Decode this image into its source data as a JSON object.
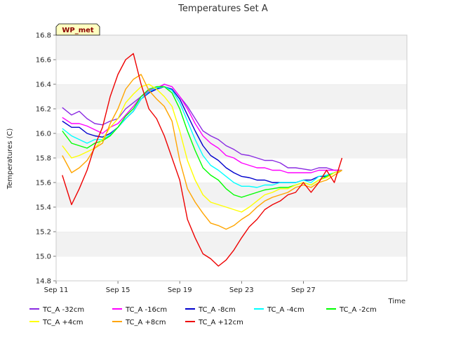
{
  "chart_data": {
    "type": "line",
    "title": "Temperatures Set A",
    "xlabel": "Time",
    "ylabel": "Temperatures (C)",
    "badge": "WP_met",
    "x_range": [
      11.0,
      33.7
    ],
    "ylim": [
      14.8,
      16.8
    ],
    "y_ticks": [
      "14.8",
      "15.0",
      "15.2",
      "15.4",
      "15.6",
      "15.8",
      "16.0",
      "16.2",
      "16.4",
      "16.6",
      "16.8"
    ],
    "x_ticks": [
      {
        "value": 11,
        "label": "Sep 11"
      },
      {
        "value": 15,
        "label": "Sep 15"
      },
      {
        "value": 19,
        "label": "Sep 19"
      },
      {
        "value": 23,
        "label": "Sep 23"
      },
      {
        "value": 27,
        "label": "Sep 27"
      }
    ],
    "grid": "bands",
    "legend_position": "bottom",
    "x": [
      11.4,
      12.0,
      12.5,
      13.0,
      13.5,
      14.0,
      14.5,
      15.0,
      15.5,
      16.0,
      16.5,
      17.0,
      17.5,
      18.0,
      18.5,
      19.0,
      19.5,
      20.0,
      20.5,
      21.0,
      21.5,
      22.0,
      22.5,
      23.0,
      23.5,
      24.0,
      24.5,
      25.0,
      25.5,
      26.0,
      26.5,
      27.0,
      27.5,
      28.0,
      28.5,
      29.0,
      29.5
    ],
    "series": [
      {
        "name": "TC_A -32cm",
        "color": "#8a2be2",
        "values": [
          16.21,
          16.15,
          16.18,
          16.12,
          16.08,
          16.07,
          16.1,
          16.12,
          16.2,
          16.25,
          16.3,
          16.34,
          16.36,
          16.4,
          16.38,
          16.3,
          16.22,
          16.12,
          16.02,
          15.98,
          15.95,
          15.9,
          15.87,
          15.83,
          15.82,
          15.8,
          15.78,
          15.78,
          15.76,
          15.72,
          15.72,
          15.71,
          15.7,
          15.72,
          15.72,
          15.7,
          15.7
        ]
      },
      {
        "name": "TC_A -16cm",
        "color": "#ff00ff",
        "values": [
          16.13,
          16.08,
          16.08,
          16.06,
          16.03,
          16.0,
          16.05,
          16.08,
          16.15,
          16.22,
          16.3,
          16.35,
          16.37,
          16.4,
          16.38,
          16.3,
          16.2,
          16.08,
          15.98,
          15.92,
          15.88,
          15.82,
          15.8,
          15.76,
          15.74,
          15.72,
          15.72,
          15.7,
          15.7,
          15.68,
          15.68,
          15.68,
          15.68,
          15.7,
          15.7,
          15.7,
          15.7
        ]
      },
      {
        "name": "TC_A -8cm",
        "color": "#0000cd",
        "values": [
          16.1,
          16.05,
          16.05,
          16.0,
          15.98,
          15.97,
          16.0,
          16.05,
          16.12,
          16.18,
          16.28,
          16.33,
          16.36,
          16.38,
          16.36,
          16.28,
          16.15,
          16.02,
          15.9,
          15.82,
          15.78,
          15.72,
          15.68,
          15.65,
          15.64,
          15.62,
          15.62,
          15.6,
          15.6,
          15.6,
          15.6,
          15.62,
          15.62,
          15.65,
          15.65,
          15.68,
          15.7
        ]
      },
      {
        "name": "TC_A -4cm",
        "color": "#00ffff",
        "values": [
          16.04,
          15.98,
          15.95,
          15.92,
          15.95,
          15.95,
          15.99,
          16.05,
          16.12,
          16.18,
          16.28,
          16.34,
          16.37,
          16.38,
          16.35,
          16.25,
          16.1,
          15.95,
          15.82,
          15.74,
          15.7,
          15.65,
          15.6,
          15.57,
          15.57,
          15.56,
          15.58,
          15.58,
          15.6,
          15.6,
          15.6,
          15.62,
          15.6,
          15.65,
          15.66,
          15.68,
          15.7
        ]
      },
      {
        "name": "TC_A -2cm",
        "color": "#00ff00",
        "values": [
          16.02,
          15.92,
          15.9,
          15.88,
          15.92,
          15.94,
          15.98,
          16.05,
          16.14,
          16.2,
          16.3,
          16.36,
          16.38,
          16.38,
          16.33,
          16.2,
          16.02,
          15.86,
          15.72,
          15.66,
          15.62,
          15.55,
          15.5,
          15.48,
          15.5,
          15.52,
          15.54,
          15.55,
          15.56,
          15.56,
          15.58,
          15.6,
          15.58,
          15.62,
          15.65,
          15.68,
          15.7
        ]
      },
      {
        "name": "TC_A +4cm",
        "color": "#ffff00",
        "values": [
          15.9,
          15.8,
          15.82,
          15.85,
          15.88,
          15.95,
          16.05,
          16.12,
          16.25,
          16.32,
          16.38,
          16.4,
          16.36,
          16.3,
          16.22,
          16.02,
          15.78,
          15.62,
          15.5,
          15.44,
          15.42,
          15.4,
          15.38,
          15.36,
          15.4,
          15.45,
          15.5,
          15.52,
          15.55,
          15.55,
          15.58,
          15.6,
          15.58,
          15.62,
          15.64,
          15.68,
          15.7
        ]
      },
      {
        "name": "TC_A +8cm",
        "color": "#ffa500",
        "values": [
          15.82,
          15.68,
          15.72,
          15.78,
          15.88,
          15.92,
          16.08,
          16.2,
          16.36,
          16.44,
          16.48,
          16.35,
          16.28,
          16.22,
          16.1,
          15.78,
          15.55,
          15.44,
          15.35,
          15.27,
          15.25,
          15.22,
          15.25,
          15.3,
          15.34,
          15.4,
          15.45,
          15.48,
          15.5,
          15.52,
          15.56,
          15.58,
          15.56,
          15.6,
          15.62,
          15.66,
          15.7
        ]
      },
      {
        "name": "TC_A +12cm",
        "color": "#ee0000",
        "values": [
          15.66,
          15.42,
          15.55,
          15.7,
          15.9,
          16.05,
          16.3,
          16.48,
          16.6,
          16.65,
          16.4,
          16.2,
          16.12,
          15.98,
          15.8,
          15.62,
          15.3,
          15.15,
          15.02,
          14.98,
          14.92,
          14.97,
          15.05,
          15.15,
          15.24,
          15.3,
          15.38,
          15.42,
          15.45,
          15.5,
          15.52,
          15.6,
          15.52,
          15.6,
          15.7,
          15.6,
          15.8
        ]
      }
    ]
  }
}
